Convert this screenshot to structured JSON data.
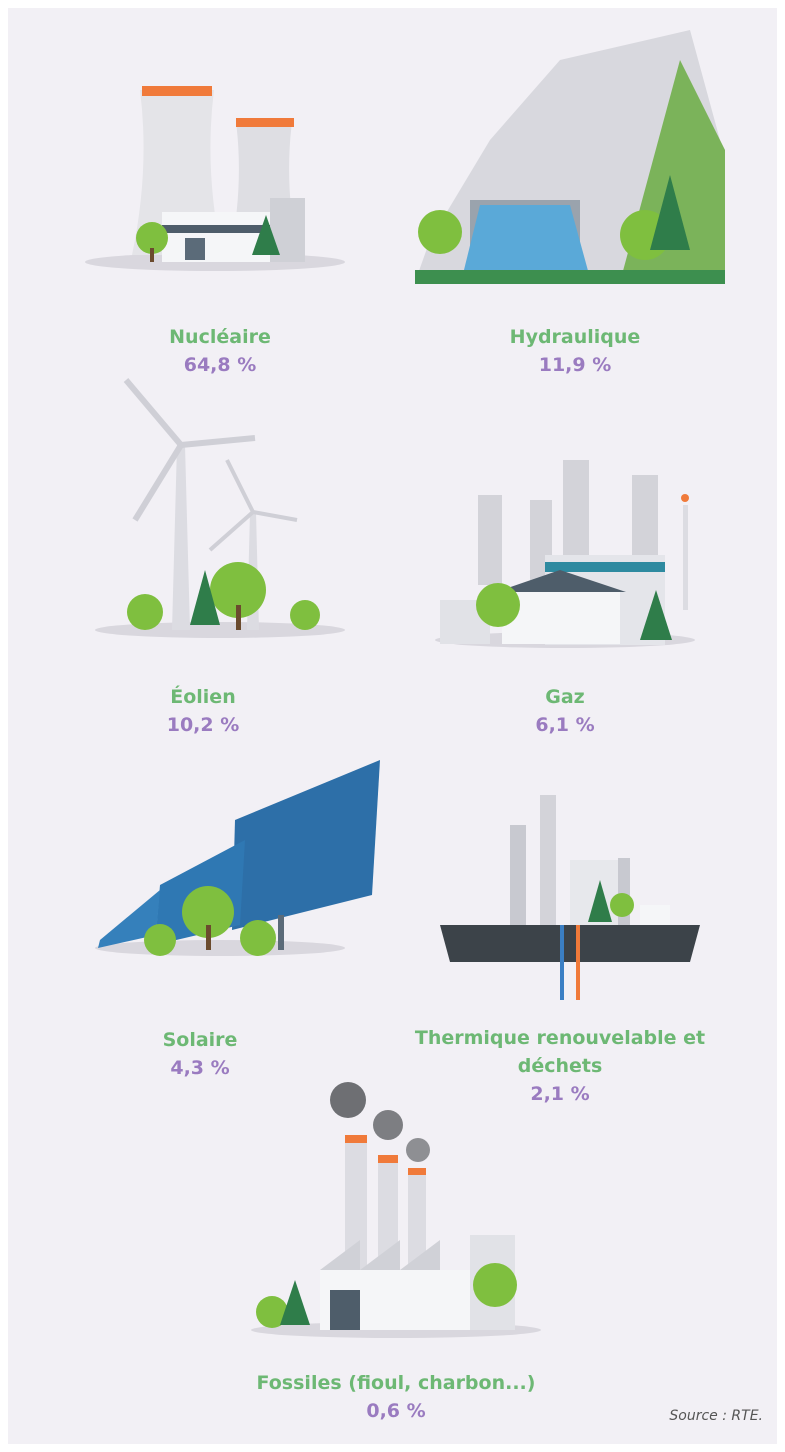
{
  "items": [
    {
      "label": "Nucléaire",
      "value": "64,8 %"
    },
    {
      "label": "Hydraulique",
      "value": "11,9 %"
    },
    {
      "label": "Éolien",
      "value": "10,2 %"
    },
    {
      "label": "Gaz",
      "value": "6,1 %"
    },
    {
      "label": "Solaire",
      "value": "4,3 %"
    },
    {
      "label": "Thermique renouvelable et déchets",
      "value": "2,1 %"
    },
    {
      "label": "Fossiles (fioul, charbon...)",
      "value": "0,6 %"
    }
  ],
  "source": "Source : RTE."
}
